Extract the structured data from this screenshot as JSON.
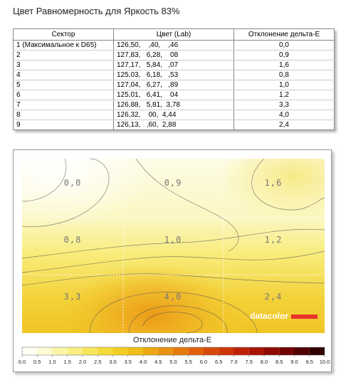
{
  "header": {
    "title": "Цвет Равномерность для Яркость 83%"
  },
  "table": {
    "columns": [
      "Сектор",
      "Цвет (Lab)",
      "Отклонение дельта-E"
    ],
    "rows": [
      [
        "1 (Максимальное к D65)",
        "126,50,    ,40,    ,46",
        "0,0"
      ],
      [
        "2",
        "127,83,   6,28,    08",
        "0,9"
      ],
      [
        "3",
        "127,17,   5,84,   ,07",
        "1,6"
      ],
      [
        "4",
        "125,03,   6,18,   ,53",
        "0,8"
      ],
      [
        "5",
        "127,04,   6,27,   ,89",
        "1,0"
      ],
      [
        "6",
        "125,01,   6,41,    04",
        "1,2"
      ],
      [
        "7",
        "126,88,   5,81,  3,78",
        "3,3"
      ],
      [
        "8",
        "126,32,    00,  4,44",
        "4,0"
      ],
      [
        "9",
        "126,13,   ,60,  2,88",
        "2,4"
      ]
    ]
  },
  "map": {
    "cells": [
      [
        "0,0",
        "0,9",
        "1,6"
      ],
      [
        "0,8",
        "1,0",
        "1,2"
      ],
      [
        "3,3",
        "4,0",
        "2,4"
      ]
    ],
    "logo": "datacolor",
    "legend_title": "Отклонение дельта-E",
    "scale": [
      "0.0",
      "0.5",
      "1.0",
      "1.5",
      "2.0",
      "2.5",
      "3.0",
      "3.5",
      "4.0",
      "4.5",
      "5.0",
      "5.5",
      "6.0",
      "6.5",
      "7.0",
      "7.5",
      "8.0",
      "8.5",
      "9.0",
      "9.5",
      "10.0"
    ]
  }
}
